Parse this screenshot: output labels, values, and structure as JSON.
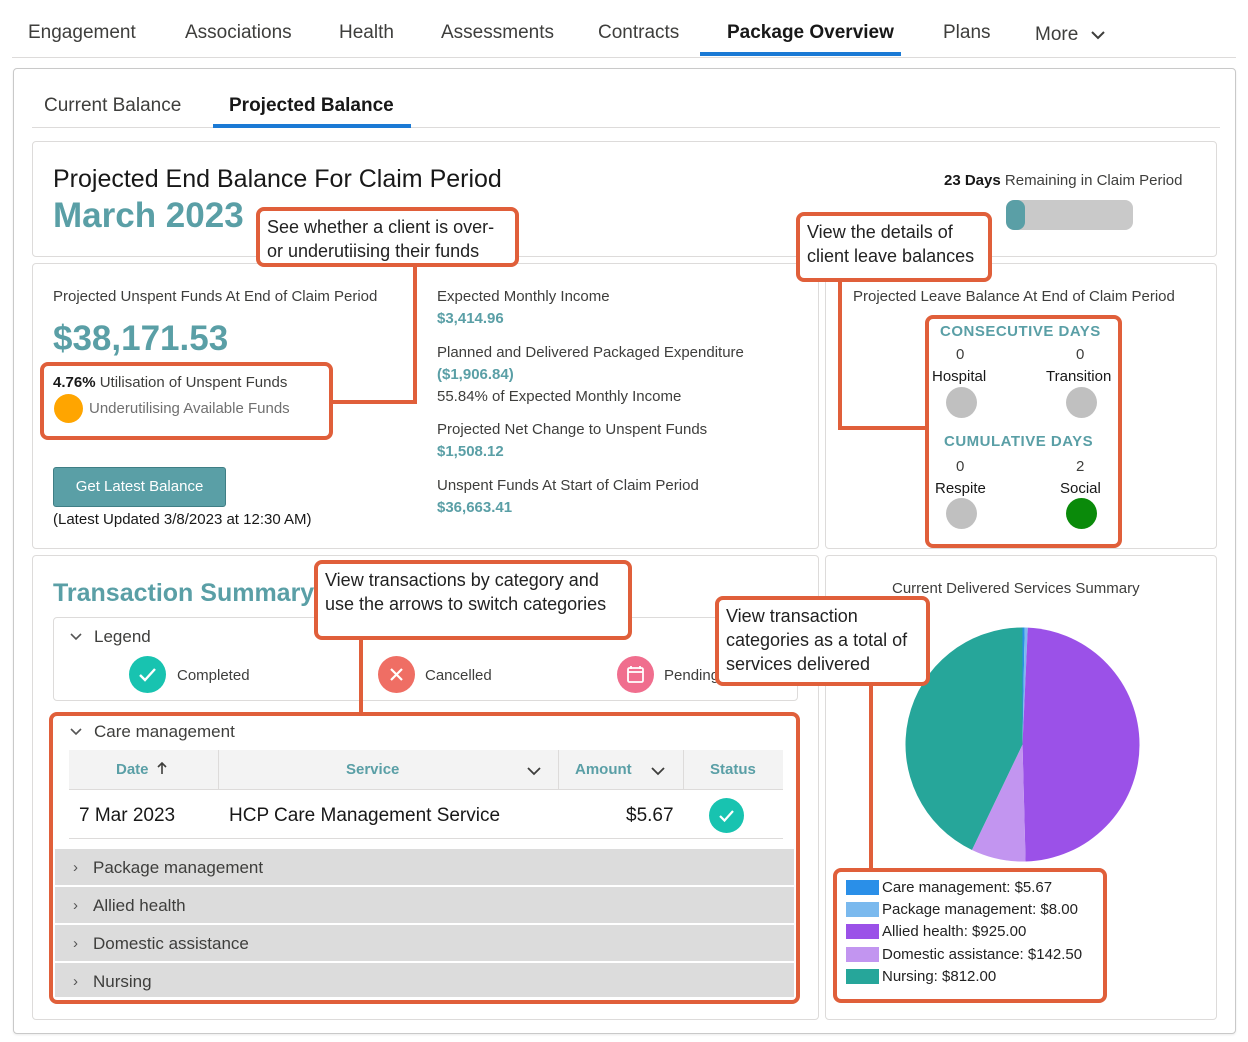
{
  "nav": {
    "tabs": [
      "Engagement",
      "Associations",
      "Health",
      "Assessments",
      "Contracts",
      "Package Overview",
      "Plans",
      "More"
    ],
    "active": "Package Overview"
  },
  "subtabs": {
    "current": "Current Balance",
    "projected": "Projected Balance"
  },
  "header": {
    "title": "Projected End Balance For Claim Period",
    "month": "March 2023",
    "days_number": "23 Days",
    "days_text": "Remaining in Claim Period",
    "days_progress_percent": 15
  },
  "funds": {
    "label": "Projected Unspent Funds At End of Claim Period",
    "amount": "$38,171.53",
    "util_pct": "4.76%",
    "util_label": "Utilisation of Unspent Funds",
    "status": "Underutilising Available Funds",
    "status_color": "#ffa500",
    "button": "Get Latest Balance",
    "updated": "(Latest Updated 3/8/2023 at 12:30 AM)"
  },
  "metrics": [
    {
      "label": "Expected Monthly Income",
      "value": "$3,414.96"
    },
    {
      "label": "Planned and Delivered Packaged Expenditure",
      "value": "($1,906.84)",
      "note": "55.84% of Expected Monthly Income"
    },
    {
      "label": "Projected Net Change to Unspent Funds",
      "value": "$1,508.12"
    },
    {
      "label": "Unspent Funds At Start of Claim Period",
      "value": "$36,663.41"
    }
  ],
  "leave": {
    "title": "Projected Leave Balance At End of Claim Period",
    "consecutive": "CONSECUTIVE DAYS",
    "cumulative": "CUMULATIVE DAYS",
    "items": [
      {
        "name": "Hospital",
        "count": "0",
        "color": "#c0c0c0"
      },
      {
        "name": "Transition",
        "count": "0",
        "color": "#c0c0c0"
      },
      {
        "name": "Respite",
        "count": "0",
        "color": "#c0c0c0"
      },
      {
        "name": "Social",
        "count": "2",
        "color": "#0a8a0a"
      }
    ]
  },
  "transactions": {
    "title": "Transaction Summary",
    "legend_title": "Legend",
    "legend": [
      "Completed",
      "Cancelled",
      "Pending"
    ],
    "group": "Care management",
    "columns": {
      "date": "Date",
      "service": "Service",
      "amount": "Amount",
      "status": "Status"
    },
    "rows": [
      {
        "date": "7 Mar 2023",
        "service": "HCP Care Management Service",
        "amount": "$5.67"
      }
    ],
    "collapsed": [
      "Package management",
      "Allied health",
      "Domestic assistance",
      "Nursing"
    ]
  },
  "services_summary": {
    "title": "Current Delivered Services Summary",
    "legend": [
      {
        "label": "Care management: $5.67",
        "color": "#2a8fe8"
      },
      {
        "label": "Package management: $8.00",
        "color": "#7ab9ee"
      },
      {
        "label": "Allied health: $925.00",
        "color": "#9b51e8"
      },
      {
        "label": "Domestic assistance: $142.50",
        "color": "#c295f0"
      },
      {
        "label": "Nursing: $812.00",
        "color": "#26a69a"
      }
    ]
  },
  "chart_data": {
    "type": "pie",
    "categories": [
      "Care management",
      "Package management",
      "Allied health",
      "Domestic assistance",
      "Nursing"
    ],
    "values": [
      5.67,
      8.0,
      925.0,
      142.5,
      812.0
    ],
    "colors": [
      "#2a8fe8",
      "#7ab9ee",
      "#9b51e8",
      "#c295f0",
      "#26a69a"
    ]
  },
  "callouts": {
    "utilisation": "See whether a client is over- or underutiising their funds",
    "leave": "View the details of client leave balances",
    "transactions": "View transactions by category and use the arrows to switch categories",
    "categories": "View transaction categories as a total of services delivered"
  }
}
